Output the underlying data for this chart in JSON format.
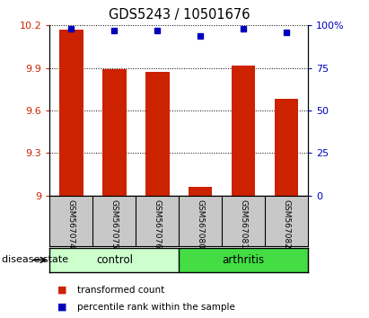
{
  "title": "GDS5243 / 10501676",
  "samples": [
    "GSM567074",
    "GSM567075",
    "GSM567076",
    "GSM567080",
    "GSM567081",
    "GSM567082"
  ],
  "red_values": [
    10.17,
    9.89,
    9.87,
    9.06,
    9.92,
    9.68
  ],
  "blue_values": [
    98,
    97,
    97,
    94,
    98,
    96
  ],
  "bar_baseline": 9.0,
  "ylim_left": [
    9.0,
    10.2
  ],
  "ylim_right": [
    0,
    100
  ],
  "yticks_left": [
    9.0,
    9.3,
    9.6,
    9.9,
    10.2
  ],
  "yticks_right": [
    0,
    25,
    50,
    75,
    100
  ],
  "ytick_labels_left": [
    "9",
    "9.3",
    "9.6",
    "9.9",
    "10.2"
  ],
  "ytick_labels_right": [
    "0",
    "25",
    "50",
    "75",
    "100%"
  ],
  "groups": [
    {
      "label": "control",
      "indices": [
        0,
        1,
        2
      ],
      "color": "#ccffcc"
    },
    {
      "label": "arthritis",
      "indices": [
        3,
        4,
        5
      ],
      "color": "#44dd44"
    }
  ],
  "bar_color": "#cc2200",
  "dot_color": "#0000bb",
  "bg_color": "#c8c8c8",
  "legend_red_label": "transformed count",
  "legend_blue_label": "percentile rank within the sample",
  "disease_state_label": "disease state",
  "bar_width": 0.55
}
